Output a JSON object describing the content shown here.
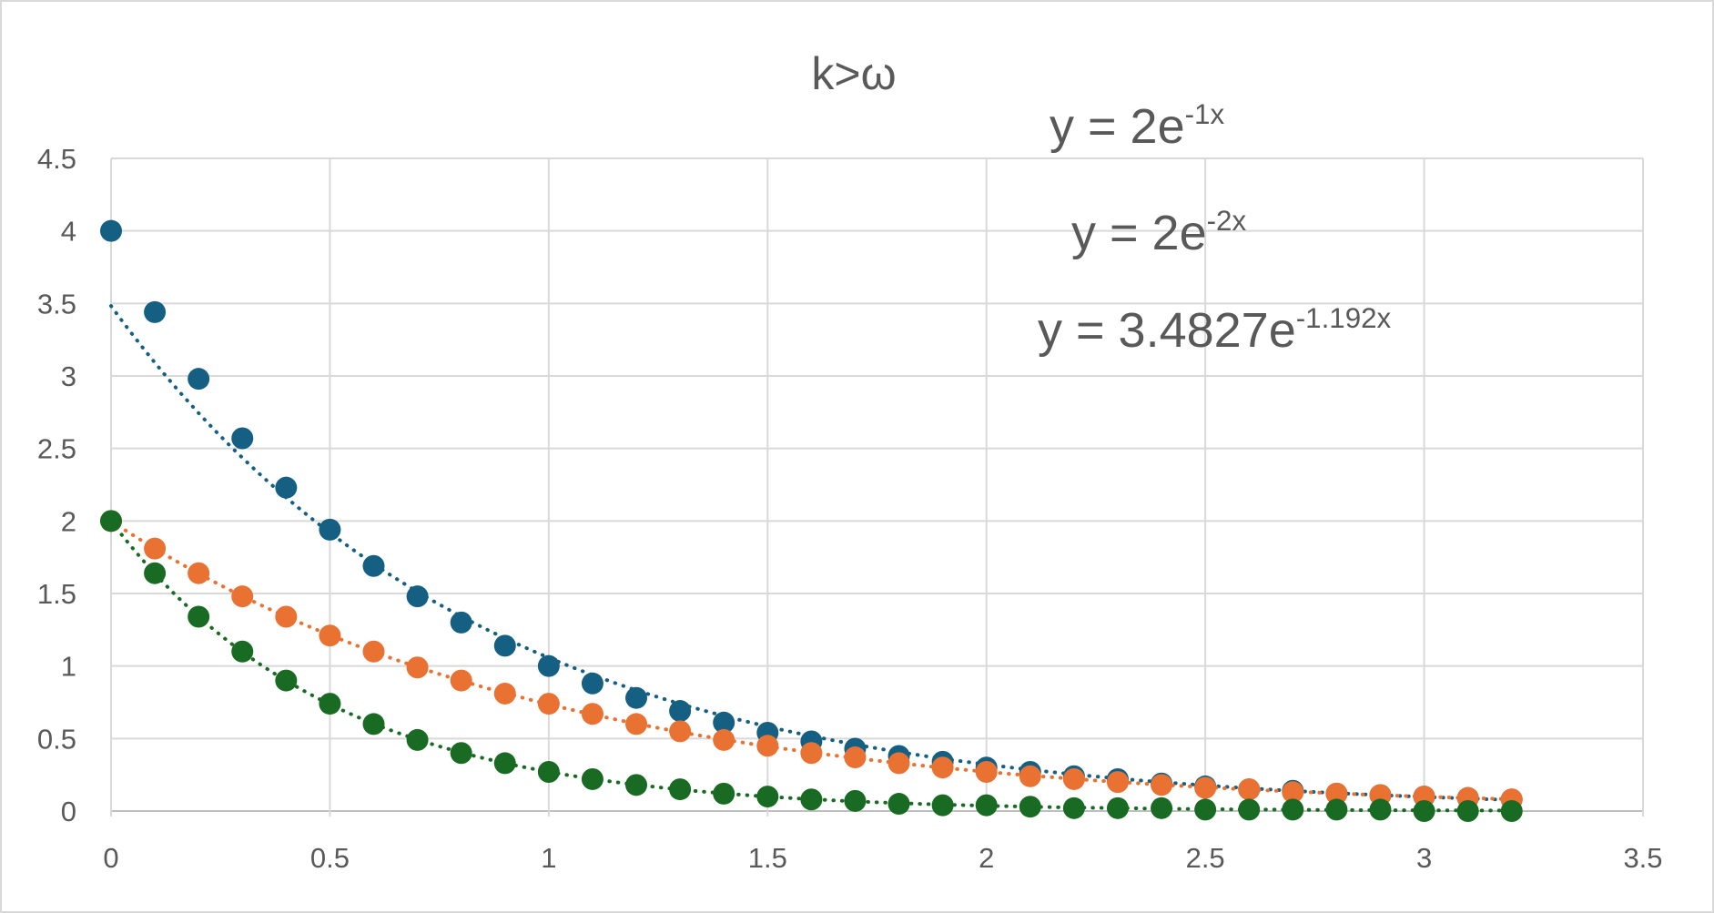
{
  "chart_data": {
    "type": "scatter",
    "title": "k>ω",
    "xlabel": "",
    "ylabel": "",
    "xlim": [
      0,
      3.5
    ],
    "ylim": [
      0,
      4.5
    ],
    "x_ticks": [
      "0",
      "0.5",
      "1",
      "1.5",
      "2",
      "2.5",
      "3",
      "3.5"
    ],
    "y_ticks": [
      "0",
      "0.5",
      "1",
      "1.5",
      "2",
      "2.5",
      "3",
      "3.5",
      "4",
      "4.5"
    ],
    "grid": true,
    "legend": "none",
    "x": [
      0,
      0.1,
      0.2,
      0.3,
      0.4,
      0.5,
      0.6,
      0.7,
      0.8,
      0.9,
      1.0,
      1.1,
      1.2,
      1.3,
      1.4,
      1.5,
      1.6,
      1.7,
      1.8,
      1.9,
      2.0,
      2.1,
      2.2,
      2.3,
      2.4,
      2.5,
      2.6,
      2.7,
      2.8,
      2.9,
      3.0,
      3.1,
      3.2
    ],
    "series": [
      {
        "color": "#156082",
        "values": [
          4.0,
          3.44,
          2.98,
          2.57,
          2.23,
          1.94,
          1.69,
          1.48,
          1.3,
          1.14,
          1.0,
          0.88,
          0.78,
          0.69,
          0.61,
          0.54,
          0.48,
          0.43,
          0.38,
          0.34,
          0.3,
          0.27,
          0.24,
          0.22,
          0.19,
          0.17,
          0.15,
          0.14,
          0.12,
          0.11,
          0.1,
          0.09,
          0.08
        ],
        "trendline": {
          "equation_label": "y = 3.4827e",
          "exponent_label": "-1.192x",
          "a": 3.4827,
          "b": -1.192,
          "style": "dotted"
        }
      },
      {
        "color": "#E97132",
        "values": [
          2.0,
          1.81,
          1.64,
          1.48,
          1.34,
          1.21,
          1.1,
          0.99,
          0.9,
          0.81,
          0.74,
          0.67,
          0.6,
          0.55,
          0.49,
          0.45,
          0.4,
          0.37,
          0.33,
          0.3,
          0.27,
          0.24,
          0.22,
          0.2,
          0.18,
          0.16,
          0.15,
          0.13,
          0.12,
          0.11,
          0.1,
          0.09,
          0.08
        ],
        "trendline": {
          "equation_label": "y = 2e",
          "exponent_label": "-1x",
          "a": 2,
          "b": -1,
          "style": "dotted"
        }
      },
      {
        "color": "#196B24",
        "values": [
          2.0,
          1.64,
          1.34,
          1.1,
          0.9,
          0.74,
          0.6,
          0.49,
          0.4,
          0.33,
          0.27,
          0.22,
          0.18,
          0.15,
          0.12,
          0.1,
          0.08,
          0.07,
          0.05,
          0.04,
          0.04,
          0.03,
          0.02,
          0.02,
          0.02,
          0.01,
          0.01,
          0.01,
          0.01,
          0.01,
          0.0,
          0.0,
          0.0
        ],
        "trendline": {
          "equation_label": "y = 2e",
          "exponent_label": "-2x",
          "a": 2,
          "b": -2,
          "style": "dotted"
        }
      }
    ]
  }
}
